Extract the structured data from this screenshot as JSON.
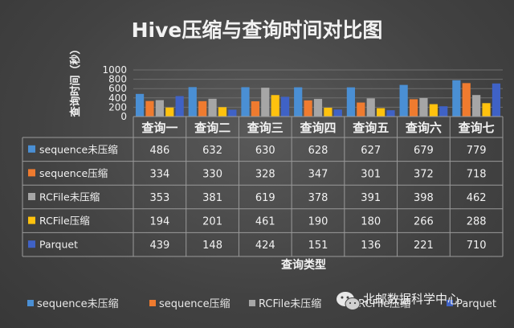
{
  "chart_data": {
    "type": "bar",
    "title": "Hive压缩与查询时间对比图",
    "ylabel": "查询时间（秒）",
    "xlabel": "查询类型",
    "ylim": [
      0,
      1000
    ],
    "yticks": [
      0,
      200,
      400,
      600,
      800,
      1000
    ],
    "categories": [
      "查询一",
      "查询二",
      "查询三",
      "查询四",
      "查询五",
      "查询六",
      "查询七"
    ],
    "series": [
      {
        "name": "sequence未压缩",
        "color": "#4a8fd4",
        "values": [
          486,
          632,
          630,
          628,
          627,
          679,
          779
        ]
      },
      {
        "name": "sequence压缩",
        "color": "#ef7b2f",
        "values": [
          334,
          330,
          328,
          347,
          301,
          372,
          718
        ]
      },
      {
        "name": "RCFile未压缩",
        "color": "#a6a6a6",
        "values": [
          353,
          381,
          619,
          378,
          391,
          398,
          462
        ]
      },
      {
        "name": "RCFile压缩",
        "color": "#ffc20e",
        "values": [
          194,
          201,
          461,
          190,
          180,
          266,
          288
        ]
      },
      {
        "name": "Parquet",
        "color": "#3f62c6",
        "values": [
          439,
          148,
          424,
          151,
          136,
          221,
          710
        ]
      }
    ],
    "grid": true,
    "legend_position": "bottom",
    "data_table": true
  },
  "watermark": {
    "text": "北邮数据科学中心",
    "icon": "wechat-icon"
  }
}
